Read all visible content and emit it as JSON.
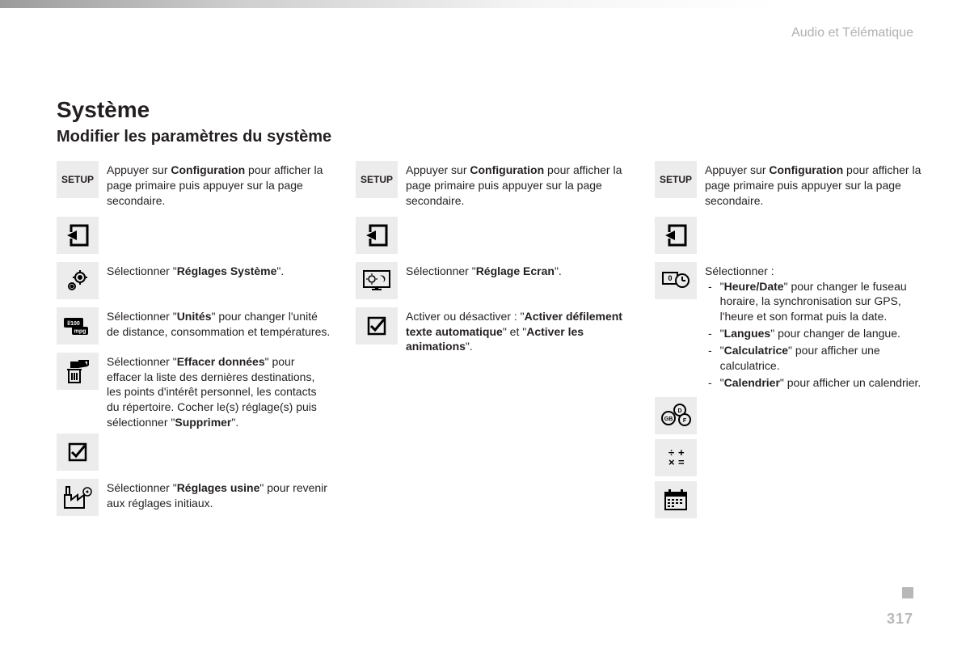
{
  "header": {
    "section": "Audio et Télématique"
  },
  "page": {
    "number": "317"
  },
  "title": "Système",
  "subtitle": "Modifier les paramètres du système",
  "setup_label": "SETUP",
  "col1": {
    "setup_text": {
      "pre": "Appuyer sur ",
      "b1": "Configuration",
      "post": " pour afficher la page primaire puis appuyer sur la page secondaire."
    },
    "r1": {
      "pre": "Sélectionner \"",
      "b": "Réglages Système",
      "post": "\"."
    },
    "r2": {
      "pre": "Sélectionner \"",
      "b": "Unités",
      "post": "\" pour changer l'unité de distance, consommation et températures."
    },
    "r3": {
      "pre": "Sélectionner \"",
      "b1": "Effacer données",
      "mid": "\" pour effacer la liste des dernières destinations, les points d'intérêt personnel, les contacts du répertoire. Cocher le(s) réglage(s) puis sélectionner \"",
      "b2": "Supprimer",
      "post": "\"."
    },
    "r4": {
      "pre": "Sélectionner \"",
      "b": "Réglages usine",
      "post": "\" pour revenir aux réglages initiaux."
    }
  },
  "col2": {
    "setup_text": {
      "pre": "Appuyer sur ",
      "b1": "Configuration",
      "post": " pour afficher la page primaire puis appuyer sur la page secondaire."
    },
    "r1": {
      "pre": "Sélectionner \"",
      "b": "Réglage Ecran",
      "post": "\"."
    },
    "r2": {
      "pre": "Activer ou désactiver : \"",
      "b1": "Activer défilement texte automatique",
      "mid": "\" et \"",
      "b2": "Activer les animations",
      "post": "\"."
    }
  },
  "col3": {
    "setup_text": {
      "pre": "Appuyer sur ",
      "b1": "Configuration",
      "post": " pour afficher la page primaire puis appuyer sur la page secondaire."
    },
    "list_intro": "Sélectionner :",
    "items": [
      {
        "b": "Heure/Date",
        "t": " pour changer le fuseau horaire, la synchronisation sur GPS, l'heure et son format puis la date."
      },
      {
        "b": "Langues",
        "t": " pour changer de langue."
      },
      {
        "b": "Calculatrice",
        "t": " pour afficher une calculatrice."
      },
      {
        "b": "Calendrier",
        "t": " pour afficher un calendrier."
      }
    ]
  }
}
